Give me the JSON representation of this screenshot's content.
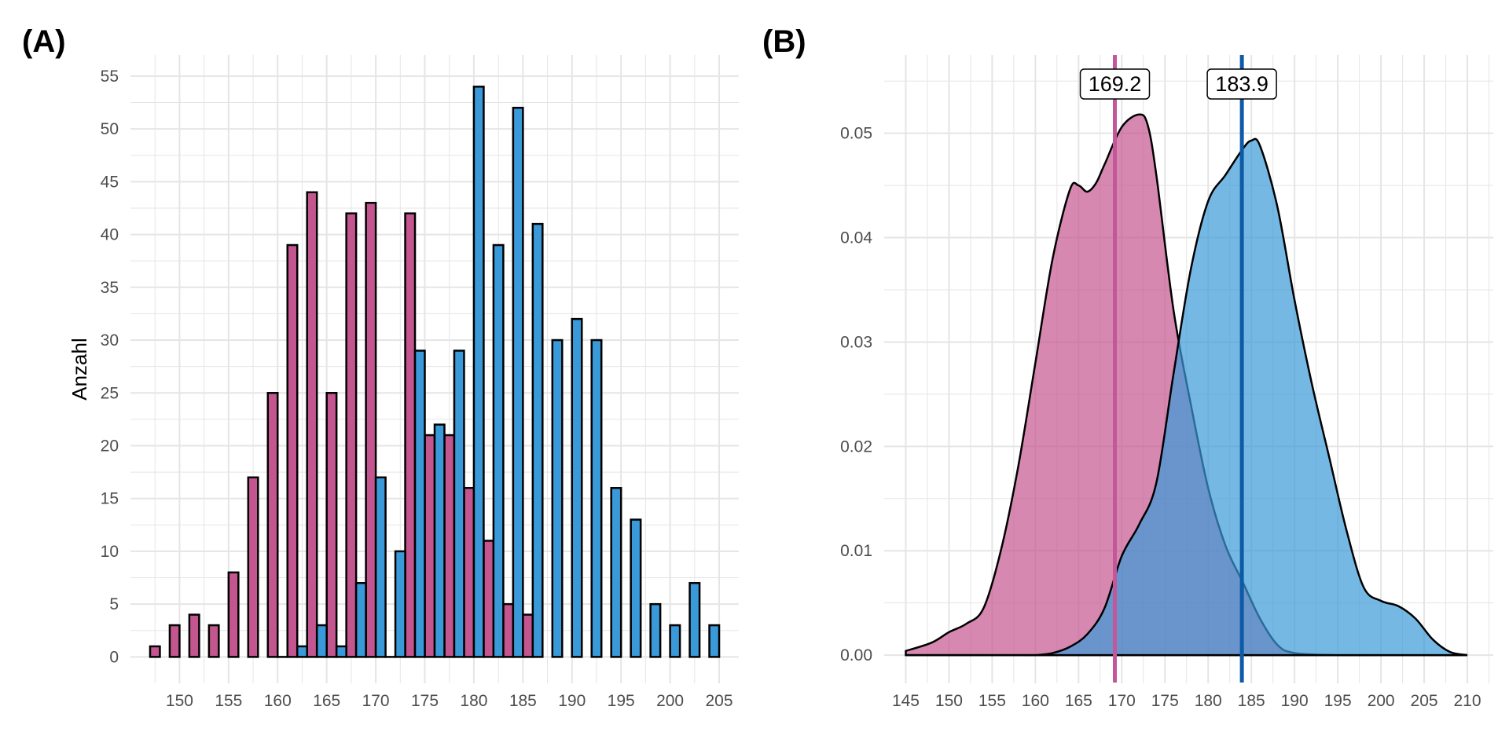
{
  "colors": {
    "female": "#c4568f",
    "male": "#3a9ad9",
    "female_line": "#c4569a",
    "male_line": "#0d5aa7",
    "grid": "#e5e5e5",
    "outline": "#000000"
  },
  "chart_data": [
    {
      "type": "bar",
      "panel_label": "(A)",
      "ylabel": "Anzahl",
      "xlabel": "",
      "xlim": [
        145,
        207
      ],
      "ylim": [
        -2.5,
        57
      ],
      "x_ticks": [
        150,
        155,
        160,
        165,
        170,
        175,
        180,
        185,
        190,
        195,
        200,
        205
      ],
      "y_ticks": [
        0,
        5,
        10,
        15,
        20,
        25,
        30,
        35,
        40,
        45,
        50,
        55
      ],
      "grid": true,
      "bin_width": 2,
      "series": [
        {
          "colorKey": "female",
          "x": [
            148,
            150,
            152,
            154,
            156,
            158,
            160,
            162,
            164,
            166,
            168,
            170,
            172,
            174,
            176,
            178,
            180,
            182,
            184,
            186
          ],
          "values": [
            1,
            3,
            4,
            3,
            8,
            17,
            25,
            39,
            44,
            25,
            42,
            43,
            0,
            42,
            21,
            21,
            16,
            11,
            5,
            4
          ]
        },
        {
          "colorKey": "male",
          "x": [
            160,
            162,
            164,
            166,
            168,
            170,
            172,
            174,
            176,
            178,
            180,
            182,
            184,
            186,
            188,
            190,
            192,
            194,
            196,
            198,
            200,
            202,
            204
          ],
          "values": [
            0,
            1,
            3,
            1,
            7,
            17,
            10,
            29,
            22,
            29,
            54,
            39,
            52,
            41,
            30,
            32,
            30,
            16,
            13,
            5,
            3,
            7,
            3
          ]
        }
      ]
    },
    {
      "type": "area",
      "panel_label": "(B)",
      "xlabel": "",
      "ylabel": "",
      "xlim": [
        142.5,
        213
      ],
      "ylim": [
        -0.0027,
        0.0575
      ],
      "x_ticks": [
        145,
        150,
        155,
        160,
        165,
        170,
        175,
        180,
        185,
        190,
        195,
        200,
        205,
        210
      ],
      "y_ticks": [
        0,
        0.01,
        0.02,
        0.03,
        0.04,
        0.05
      ],
      "y_tick_labels": [
        "0.00",
        "0.01",
        "0.02",
        "0.03",
        "0.04",
        "0.05"
      ],
      "grid": true,
      "series": [
        {
          "colorKey": "female",
          "mean": 169.2,
          "mean_label": "169.2",
          "x": [
            145,
            148,
            150,
            152,
            154,
            156,
            158,
            160,
            162,
            164,
            165,
            166,
            167,
            168,
            170,
            172,
            173,
            174,
            176,
            178,
            180,
            182,
            184,
            186,
            188,
            190,
            195,
            200,
            205,
            210
          ],
          "y": [
            0.0004,
            0.0012,
            0.0022,
            0.003,
            0.0045,
            0.01,
            0.018,
            0.028,
            0.038,
            0.0446,
            0.045,
            0.0444,
            0.0452,
            0.047,
            0.0506,
            0.0518,
            0.0508,
            0.046,
            0.033,
            0.024,
            0.016,
            0.0105,
            0.007,
            0.0035,
            0.001,
            0.0002,
            0,
            0,
            0,
            0
          ]
        },
        {
          "colorKey": "male",
          "mean": 183.9,
          "mean_label": "183.9",
          "x": [
            145,
            150,
            155,
            158,
            160,
            162,
            164,
            166,
            168,
            170,
            172,
            174,
            176,
            178,
            180,
            182,
            184,
            185,
            186,
            188,
            190,
            192,
            194,
            196,
            198,
            200,
            202,
            204,
            206,
            208,
            210
          ],
          "y": [
            0,
            0,
            0,
            0,
            0,
            0.0002,
            0.0008,
            0.002,
            0.0045,
            0.0095,
            0.0125,
            0.0165,
            0.027,
            0.037,
            0.0435,
            0.046,
            0.0485,
            0.0493,
            0.0488,
            0.043,
            0.034,
            0.026,
            0.019,
            0.012,
            0.0065,
            0.0052,
            0.0047,
            0.0035,
            0.0015,
            0.0003,
            0
          ]
        }
      ]
    }
  ]
}
